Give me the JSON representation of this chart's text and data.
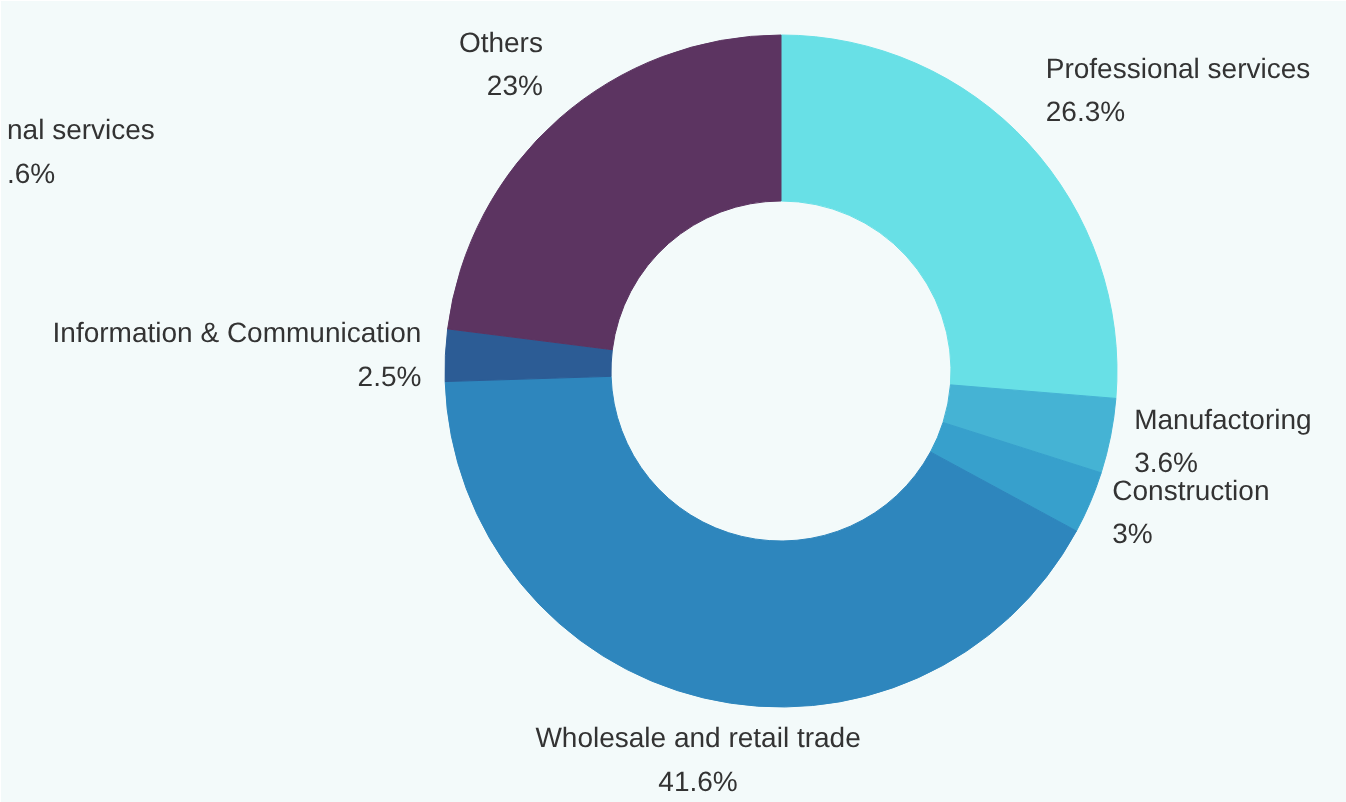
{
  "chart_data": {
    "type": "donut",
    "categories": [
      "Professional services",
      "Manufactoring",
      "Construction",
      "Wholesale and retail trade",
      "Information & Communication",
      "Others"
    ],
    "values": [
      26.3,
      3.6,
      3,
      41.6,
      2.5,
      23
    ],
    "value_labels": [
      "26.3%",
      "3.6%",
      "3%",
      "41.6%",
      "2.5%",
      "23%"
    ],
    "colors": [
      "#68e0e6",
      "#45b3d4",
      "#37a0cc",
      "#2e86bd",
      "#2c5c95",
      "#5c3461"
    ],
    "annotations": [
      "nal services\n.6%"
    ]
  }
}
